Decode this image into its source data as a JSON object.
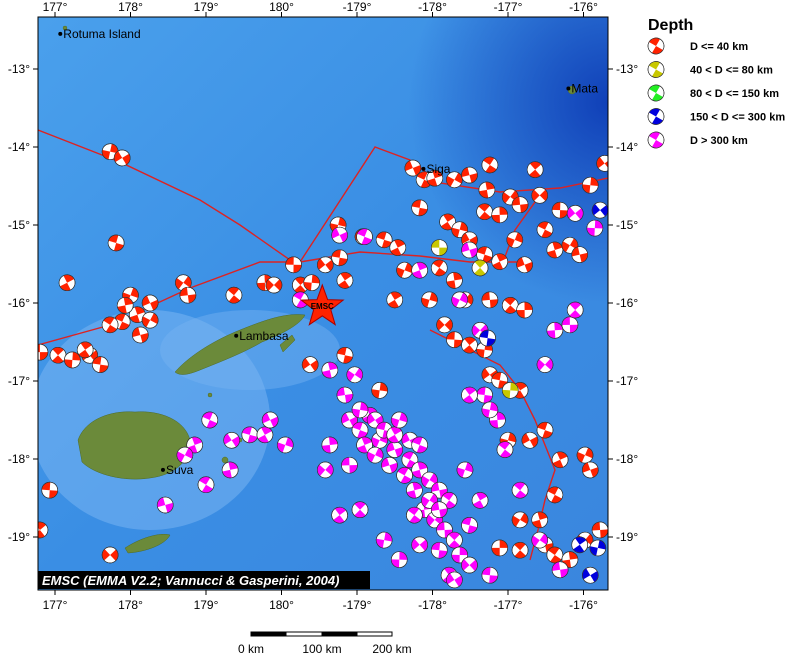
{
  "map": {
    "lon_ticks": [
      {
        "lon": 177,
        "label": "177°"
      },
      {
        "lon": 178,
        "label": "178°"
      },
      {
        "lon": 179,
        "label": "179°"
      },
      {
        "lon": 180,
        "label": "180°"
      },
      {
        "lon": -179,
        "label": "-179°"
      },
      {
        "lon": -178,
        "label": "-178°"
      },
      {
        "lon": -177,
        "label": "-177°"
      },
      {
        "lon": -176,
        "label": "-176°"
      }
    ],
    "lat_ticks": [
      {
        "lat": -13,
        "label": "-13°"
      },
      {
        "lat": -14,
        "label": "-14°"
      },
      {
        "lat": -15,
        "label": "-15°"
      },
      {
        "lat": -16,
        "label": "-16°"
      },
      {
        "lat": -17,
        "label": "-17°"
      },
      {
        "lat": -18,
        "label": "-18°"
      },
      {
        "lat": -19,
        "label": "-19°"
      }
    ],
    "places": [
      {
        "name": "Rotuma Island",
        "lon": 177.07,
        "lat": -12.55
      },
      {
        "name": "Mata",
        "lon": -176.2,
        "lat": -13.25
      },
      {
        "name": "Siga",
        "lon": -178.12,
        "lat": -14.28
      },
      {
        "name": "Lambasa",
        "lon": 179.4,
        "lat": -16.42
      },
      {
        "name": "Suva",
        "lon": 178.43,
        "lat": -18.14
      }
    ],
    "epicenter": {
      "label": "EMSC",
      "lon": -179.46,
      "lat": -16.05
    },
    "credit": "EMSC (EMMA V2.2; Vannucci & Gasperini, 2004)",
    "scale": {
      "labels": [
        "0 km",
        "100 km",
        "200 km"
      ]
    }
  },
  "legend": {
    "title": "Depth",
    "items": [
      {
        "key": "r",
        "label": "D <= 40 km",
        "color": "#ff2200"
      },
      {
        "key": "y",
        "label": "40 < D <= 80 km",
        "color": "#c8c800"
      },
      {
        "key": "g",
        "label": "80 < D <= 150 km",
        "color": "#22ee22"
      },
      {
        "key": "b",
        "label": "150 < D <= 300 km",
        "color": "#0000dd"
      },
      {
        "key": "m",
        "label": "D > 300 km",
        "color": "#ff00ff"
      }
    ]
  },
  "colors": {
    "ocean": "#3d8fe6",
    "land": "#6b8a3a",
    "plate_boundary": "#dd2222"
  },
  "events": [
    [
      176.8,
      -16.63,
      "r"
    ],
    [
      177.04,
      -16.67,
      "r"
    ],
    [
      177.23,
      -16.73,
      "r"
    ],
    [
      177.46,
      -16.67,
      "r"
    ],
    [
      177.6,
      -16.79,
      "r"
    ],
    [
      177.4,
      -16.6,
      "r"
    ],
    [
      177.73,
      -14.06,
      "r"
    ],
    [
      177.89,
      -14.14,
      "r"
    ],
    [
      177.81,
      -15.23,
      "r"
    ],
    [
      177.16,
      -15.74,
      "r"
    ],
    [
      178.0,
      -15.9,
      "r"
    ],
    [
      178.26,
      -16.0,
      "r"
    ],
    [
      177.89,
      -16.24,
      "r"
    ],
    [
      178.09,
      -16.15,
      "r"
    ],
    [
      178.26,
      -16.22,
      "r"
    ],
    [
      178.13,
      -16.41,
      "r"
    ],
    [
      177.73,
      -16.28,
      "r"
    ],
    [
      177.93,
      -16.03,
      "r"
    ],
    [
      178.7,
      -15.74,
      "r"
    ],
    [
      178.76,
      -15.9,
      "r"
    ],
    [
      179.37,
      -15.9,
      "r"
    ],
    [
      179.78,
      -15.74,
      "r"
    ],
    [
      179.9,
      -15.77,
      "r"
    ],
    [
      -179.84,
      -15.51,
      "r"
    ],
    [
      -179.75,
      -15.77,
      "r"
    ],
    [
      -179.6,
      -15.74,
      "r"
    ],
    [
      -179.42,
      -15.51,
      "r"
    ],
    [
      -179.23,
      -15.42,
      "r"
    ],
    [
      -179.16,
      -15.71,
      "r"
    ],
    [
      -179.25,
      -15.0,
      "r"
    ],
    [
      -178.92,
      -15.15,
      "r"
    ],
    [
      -178.64,
      -15.19,
      "r"
    ],
    [
      -178.46,
      -15.29,
      "r"
    ],
    [
      -178.37,
      -15.58,
      "r"
    ],
    [
      -178.26,
      -14.27,
      "r"
    ],
    [
      -178.11,
      -14.42,
      "r"
    ],
    [
      -177.97,
      -14.4,
      "r"
    ],
    [
      -177.71,
      -14.42,
      "r"
    ],
    [
      -177.51,
      -14.36,
      "r"
    ],
    [
      -177.24,
      -14.23,
      "r"
    ],
    [
      -177.28,
      -14.55,
      "r"
    ],
    [
      -176.97,
      -14.64,
      "r"
    ],
    [
      -176.84,
      -14.74,
      "r"
    ],
    [
      -177.31,
      -14.83,
      "r"
    ],
    [
      -177.11,
      -14.87,
      "r"
    ],
    [
      -176.58,
      -14.62,
      "r"
    ],
    [
      -176.31,
      -14.81,
      "r"
    ],
    [
      -176.64,
      -14.29,
      "r"
    ],
    [
      -175.91,
      -14.49,
      "r"
    ],
    [
      -175.72,
      -14.21,
      "r"
    ],
    [
      -178.17,
      -14.78,
      "r"
    ],
    [
      -177.8,
      -14.96,
      "r"
    ],
    [
      -177.64,
      -15.06,
      "r"
    ],
    [
      -177.51,
      -15.19,
      "r"
    ],
    [
      -177.31,
      -15.38,
      "r"
    ],
    [
      -177.11,
      -15.47,
      "r"
    ],
    [
      -176.91,
      -15.19,
      "r"
    ],
    [
      -176.78,
      -15.51,
      "r"
    ],
    [
      -176.51,
      -15.06,
      "r"
    ],
    [
      -176.38,
      -15.32,
      "r"
    ],
    [
      -176.18,
      -15.26,
      "r"
    ],
    [
      -176.05,
      -15.38,
      "r"
    ],
    [
      -177.91,
      -15.55,
      "r"
    ],
    [
      -177.71,
      -15.71,
      "r"
    ],
    [
      -177.57,
      -15.96,
      "r"
    ],
    [
      -177.24,
      -15.96,
      "r"
    ],
    [
      -176.97,
      -16.03,
      "r"
    ],
    [
      -176.78,
      -16.09,
      "r"
    ],
    [
      -177.84,
      -16.28,
      "r"
    ],
    [
      -177.71,
      -16.47,
      "r"
    ],
    [
      -177.51,
      -16.54,
      "r"
    ],
    [
      -177.31,
      -16.6,
      "r"
    ],
    [
      -177.24,
      -16.92,
      "r"
    ],
    [
      -177.11,
      -16.99,
      "r"
    ],
    [
      -176.84,
      -17.12,
      "r"
    ],
    [
      -177.0,
      -17.76,
      "r"
    ],
    [
      -176.71,
      -17.76,
      "r"
    ],
    [
      -176.51,
      -17.63,
      "r"
    ],
    [
      -176.31,
      -18.01,
      "r"
    ],
    [
      -175.98,
      -17.95,
      "r"
    ],
    [
      -175.91,
      -18.14,
      "r"
    ],
    [
      -176.38,
      -18.46,
      "r"
    ],
    [
      -176.58,
      -18.78,
      "r"
    ],
    [
      -176.84,
      -18.78,
      "r"
    ],
    [
      -176.51,
      -19.1,
      "r"
    ],
    [
      -176.38,
      -19.23,
      "r"
    ],
    [
      -176.18,
      -19.29,
      "r"
    ],
    [
      -175.98,
      -19.04,
      "r"
    ],
    [
      -175.78,
      -18.91,
      "r"
    ],
    [
      -176.84,
      -19.17,
      "r"
    ],
    [
      -177.11,
      -19.14,
      "r"
    ],
    [
      177.73,
      -19.23,
      "r"
    ],
    [
      176.93,
      -18.4,
      "r"
    ],
    [
      176.8,
      -18.91,
      "r"
    ],
    [
      -178.7,
      -17.12,
      "r"
    ],
    [
      -179.62,
      -16.79,
      "r"
    ],
    [
      -179.16,
      -16.67,
      "r"
    ],
    [
      -178.5,
      -15.96,
      "r"
    ],
    [
      -178.04,
      -15.96,
      "r"
    ],
    [
      -179.1,
      -17.5,
      "m"
    ],
    [
      -178.96,
      -17.63,
      "m"
    ],
    [
      -178.83,
      -17.44,
      "m"
    ],
    [
      -178.7,
      -17.76,
      "m"
    ],
    [
      -178.5,
      -17.88,
      "m"
    ],
    [
      -178.3,
      -18.01,
      "m"
    ],
    [
      -178.17,
      -18.14,
      "m"
    ],
    [
      -178.04,
      -18.27,
      "m"
    ],
    [
      -177.91,
      -18.4,
      "m"
    ],
    [
      -177.78,
      -18.53,
      "m"
    ],
    [
      -178.11,
      -18.65,
      "m"
    ],
    [
      -177.97,
      -18.78,
      "m"
    ],
    [
      -177.84,
      -18.91,
      "m"
    ],
    [
      -177.71,
      -19.04,
      "m"
    ],
    [
      -177.64,
      -19.23,
      "m"
    ],
    [
      -177.51,
      -19.36,
      "m"
    ],
    [
      -177.24,
      -19.49,
      "m"
    ],
    [
      -177.78,
      -19.49,
      "m"
    ],
    [
      -178.96,
      -17.37,
      "m"
    ],
    [
      -178.76,
      -17.5,
      "m"
    ],
    [
      -178.64,
      -17.63,
      "m"
    ],
    [
      -178.5,
      -17.69,
      "m"
    ],
    [
      -178.44,
      -17.5,
      "m"
    ],
    [
      -178.3,
      -17.76,
      "m"
    ],
    [
      -178.17,
      -17.82,
      "m"
    ],
    [
      -178.9,
      -17.82,
      "m"
    ],
    [
      -178.76,
      -17.95,
      "m"
    ],
    [
      -178.57,
      -18.08,
      "m"
    ],
    [
      -178.37,
      -18.21,
      "m"
    ],
    [
      -178.24,
      -18.4,
      "m"
    ],
    [
      -178.04,
      -18.53,
      "m"
    ],
    [
      -177.91,
      -18.65,
      "m"
    ],
    [
      -178.24,
      -18.72,
      "m"
    ],
    [
      -179.36,
      -17.82,
      "m"
    ],
    [
      -179.42,
      -18.14,
      "m"
    ],
    [
      -179.1,
      -18.08,
      "m"
    ],
    [
      -178.96,
      -18.65,
      "m"
    ],
    [
      -178.44,
      -19.29,
      "m"
    ],
    [
      -178.17,
      -19.1,
      "m"
    ],
    [
      -177.91,
      -19.17,
      "m"
    ],
    [
      -179.23,
      -18.72,
      "m"
    ],
    [
      -178.64,
      -19.04,
      "m"
    ],
    [
      -177.71,
      -19.55,
      "m"
    ],
    [
      -177.51,
      -18.85,
      "m"
    ],
    [
      -177.37,
      -18.53,
      "m"
    ],
    [
      -177.57,
      -18.14,
      "m"
    ],
    [
      -179.23,
      -15.13,
      "m"
    ],
    [
      -178.9,
      -15.15,
      "m"
    ],
    [
      -178.17,
      -15.58,
      "m"
    ],
    [
      -177.64,
      -15.96,
      "m"
    ],
    [
      -177.51,
      -15.32,
      "m"
    ],
    [
      -179.75,
      -15.96,
      "m"
    ],
    [
      -179.36,
      -16.86,
      "m"
    ],
    [
      -179.03,
      -16.92,
      "m"
    ],
    [
      -179.16,
      -17.18,
      "m"
    ],
    [
      -177.04,
      -17.88,
      "m"
    ],
    [
      -177.14,
      -17.5,
      "m"
    ],
    [
      -176.51,
      -16.79,
      "m"
    ],
    [
      -176.18,
      -16.28,
      "m"
    ],
    [
      -176.11,
      -16.09,
      "m"
    ],
    [
      -175.85,
      -15.04,
      "m"
    ],
    [
      -176.11,
      -14.85,
      "m"
    ],
    [
      -177.31,
      -17.18,
      "m"
    ],
    [
      -177.51,
      -17.18,
      "m"
    ],
    [
      -177.24,
      -17.37,
      "m"
    ],
    [
      179.34,
      -17.76,
      "m"
    ],
    [
      179.58,
      -17.69,
      "m"
    ],
    [
      179.78,
      -17.69,
      "m"
    ],
    [
      -179.95,
      -17.82,
      "m"
    ],
    [
      179.85,
      -17.5,
      "m"
    ],
    [
      179.05,
      -17.5,
      "m"
    ],
    [
      178.85,
      -17.82,
      "m"
    ],
    [
      178.72,
      -17.95,
      "m"
    ],
    [
      178.46,
      -18.59,
      "m"
    ],
    [
      179.0,
      -18.33,
      "m"
    ],
    [
      179.32,
      -18.14,
      "m"
    ],
    [
      -176.58,
      -19.04,
      "m"
    ],
    [
      -176.31,
      -19.42,
      "m"
    ],
    [
      -176.84,
      -18.4,
      "m"
    ],
    [
      -176.38,
      -16.35,
      "m"
    ],
    [
      -177.37,
      -16.35,
      "m"
    ],
    [
      -177.91,
      -15.29,
      "y"
    ],
    [
      -177.37,
      -15.55,
      "y"
    ],
    [
      -176.97,
      -17.12,
      "y"
    ],
    [
      -175.78,
      -14.81,
      "b"
    ],
    [
      -177.27,
      -16.45,
      "b"
    ],
    [
      -176.05,
      -19.1,
      "b"
    ],
    [
      -175.81,
      -19.14,
      "b"
    ],
    [
      -175.91,
      -19.49,
      "b"
    ]
  ]
}
